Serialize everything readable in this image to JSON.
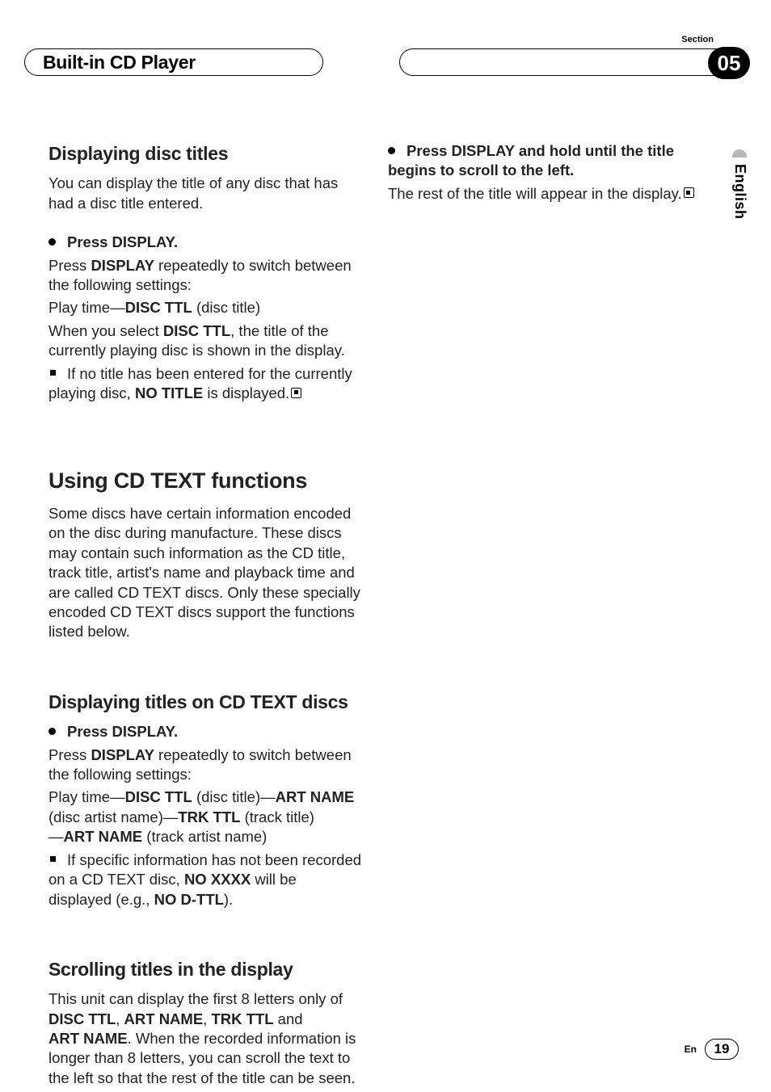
{
  "header": {
    "title": "Built-in CD Player",
    "section_label": "Section",
    "section_number": "05"
  },
  "side": {
    "language": "English"
  },
  "left": {
    "s1": {
      "heading": "Displaying disc titles",
      "intro": "You can display the title of any disc that has had a disc title entered.",
      "step_bold": "Press DISPLAY.",
      "p1a": "Press ",
      "p1b": "DISPLAY",
      "p1c": " repeatedly to switch between the following settings:",
      "p2a": "Play time—",
      "p2b": "DISC TTL",
      "p2c": " (disc title)",
      "p3a": "When you select ",
      "p3b": "DISC TTL",
      "p3c": ", the title of the currently playing disc is shown in the display.",
      "note_a": "If no title has been entered for the currently playing disc, ",
      "note_b": "NO TITLE",
      "note_c": " is displayed."
    },
    "s2": {
      "heading": "Using CD TEXT functions",
      "intro": "Some discs have certain information encoded on the disc during manufacture. These discs may contain such information as the CD title, track title, artist's name and playback time and are called CD TEXT discs. Only these specially encoded CD TEXT discs support the functions listed below."
    },
    "s3": {
      "heading": "Displaying titles on CD TEXT discs",
      "step_bold": "Press DISPLAY.",
      "p1a": "Press ",
      "p1b": "DISPLAY",
      "p1c": " repeatedly to switch between the following settings:",
      "p2a": "Play time—",
      "p2b": "DISC TTL",
      "p2c": " (disc title)—",
      "p2d": "ART NAME",
      "p2e": " (disc artist name)—",
      "p2f": "TRK TTL",
      "p2g": " (track title)",
      "p2h": "—",
      "p2i": "ART NAME",
      "p2j": " (track artist name)",
      "note_a": "If specific information has not been recorded on a CD TEXT disc, ",
      "note_b": "NO XXXX",
      "note_c": " will be displayed (e.g., ",
      "note_d": "NO D-TTL",
      "note_e": ")."
    },
    "s4": {
      "heading": "Scrolling titles in the display",
      "p1a": "This unit can display the first 8 letters only of ",
      "p1b": "DISC TTL",
      "p1c": ", ",
      "p1d": "ART NAME",
      "p1e": ", ",
      "p1f": "TRK TTL",
      "p1g": " and ",
      "p1h": "ART NAME",
      "p1i": ". When the recorded information is longer than 8 letters, you can scroll the text to the left so that the rest of the title can be seen."
    }
  },
  "right": {
    "step_bold": "Press DISPLAY and hold until the title begins to scroll to the left.",
    "p1": "The rest of the title will appear in the display."
  },
  "footer": {
    "lang": "En",
    "page": "19"
  }
}
